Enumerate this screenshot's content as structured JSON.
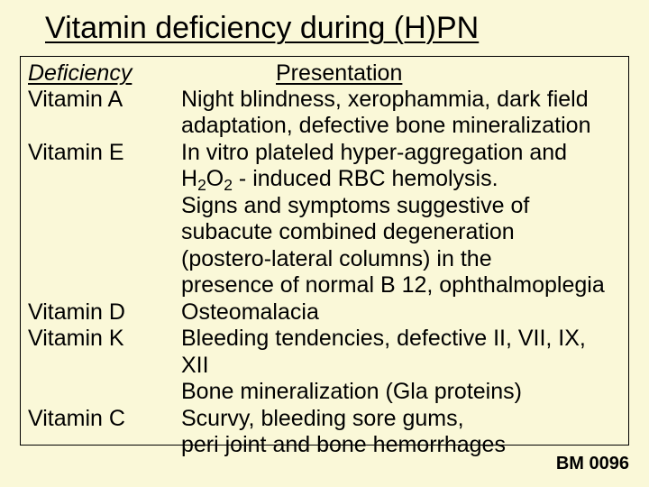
{
  "background_color": "#faf8d8",
  "text_color": "#000000",
  "title": "Vitamin deficiency during (H)PN",
  "table": {
    "headers": {
      "left": "Deficiency",
      "right": "Presentation"
    },
    "rows": [
      {
        "def": "Vitamin A",
        "pres_lines": [
          "Night blindness, xerophammia, dark field",
          "adaptation, defective bone mineralization"
        ]
      },
      {
        "def": "Vitamin E",
        "pres_lines": [
          "In vitro plateled hyper-aggregation and",
          "H₂O₂ - induced RBC hemolysis.",
          "Signs and symptoms suggestive of",
          "subacute combined degeneration",
          "(postero-lateral columns) in the",
          "presence of normal B 12, ophthalmoplegia"
        ]
      },
      {
        "def": "Vitamin D",
        "pres_lines": [
          "Osteomalacia"
        ]
      },
      {
        "def": "Vitamin K",
        "pres_lines": [
          "Bleeding tendencies, defective II, VII, IX, XII",
          "Bone mineralization (Gla proteins)"
        ]
      },
      {
        "def": "Vitamin C",
        "pres_lines": [
          "Scurvy, bleeding sore gums,",
          "peri joint and bone hemorrhages"
        ]
      }
    ]
  },
  "footer": "BM 0096",
  "style": {
    "title_fontsize": 34,
    "body_fontsize": 25,
    "footer_fontsize": 20,
    "font_family": "Arial",
    "border_color": "#000000"
  }
}
